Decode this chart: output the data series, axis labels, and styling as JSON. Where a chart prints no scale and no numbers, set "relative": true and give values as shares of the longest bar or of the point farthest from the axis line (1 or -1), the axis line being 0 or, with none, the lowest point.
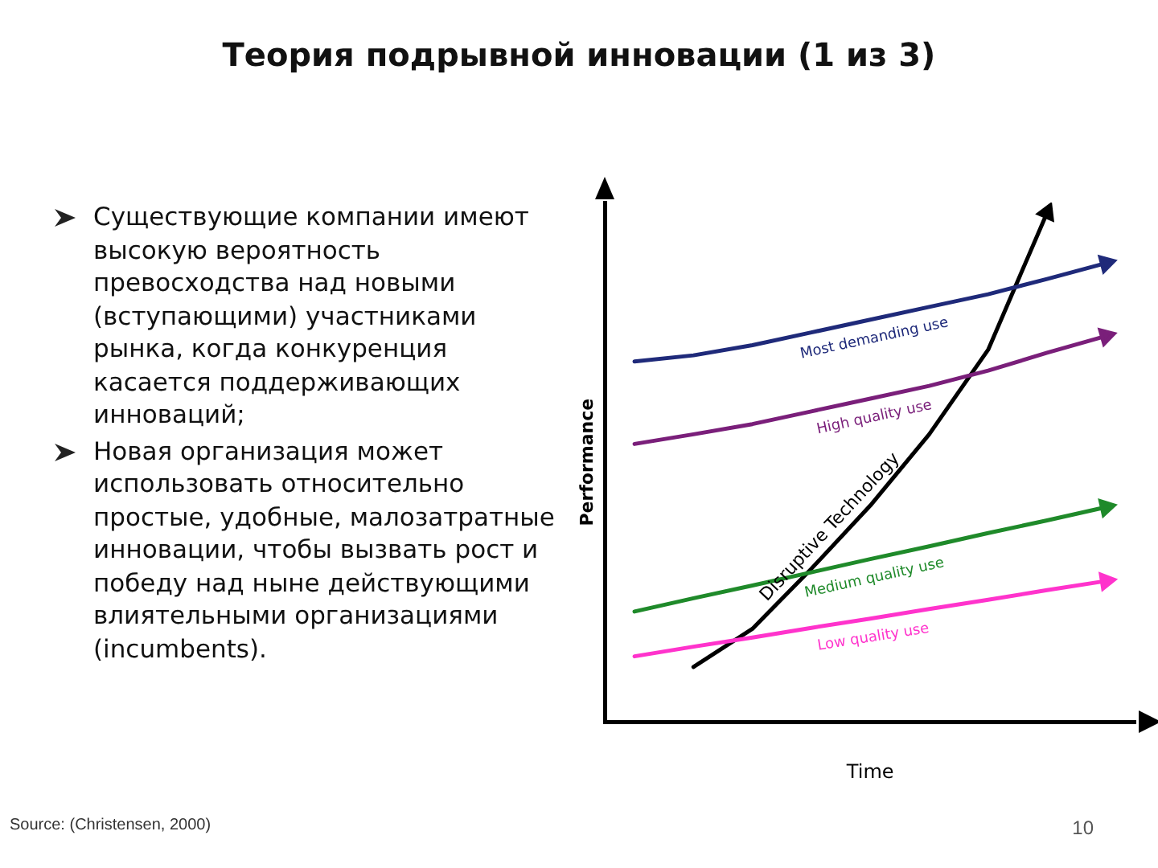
{
  "chart_data": {
    "type": "line",
    "title": "Теория подрывной инновации (1 из 3)",
    "xlabel": "Time",
    "ylabel": "Performance",
    "relative": true,
    "categories": [
      null,
      null,
      null,
      null,
      null,
      null,
      null,
      null,
      null
    ],
    "grid": false,
    "legend": false,
    "marker": "none",
    "line_style": "solid",
    "annotations": [
      "Существующие компании имеют высокую вероятность превосходства над новыми (вступающими) участниками рынка, когда конкуренция касается поддерживающих инноваций;",
      "Новая организация может использовать относительно простые, удобные, малозатратные инновации, чтобы вызвать рост и победу над ныне действующими влиятельными организациями  (incumbents).",
      "Source: (Christensen, 2000)",
      "10"
    ],
    "series": [
      {
        "name": "Most demanding use",
        "color": "#1f2a7a",
        "values": [
          0.708,
          0.72,
          0.74,
          0.765,
          0.79,
          0.815,
          0.84,
          0.87,
          0.901
        ]
      },
      {
        "name": "High quality use",
        "color": "#7a1f7a",
        "values": [
          0.546,
          0.565,
          0.585,
          0.61,
          0.635,
          0.66,
          0.69,
          0.725,
          0.758
        ]
      },
      {
        "name": "Medium quality use",
        "color": "#1f8a2a",
        "values": [
          0.217,
          0.243,
          0.268,
          0.294,
          0.32,
          0.345,
          0.371,
          0.396,
          0.422
        ]
      },
      {
        "name": "Low quality use",
        "color": "#ff33cc",
        "values": [
          0.129,
          0.148,
          0.166,
          0.185,
          0.203,
          0.222,
          0.24,
          0.259,
          0.277
        ]
      },
      {
        "name": "Disruptive Technology",
        "color": "#000000",
        "values": [
          null,
          0.108,
          0.183,
          0.301,
          0.425,
          0.565,
          0.731,
          1.0,
          null
        ]
      }
    ]
  }
}
